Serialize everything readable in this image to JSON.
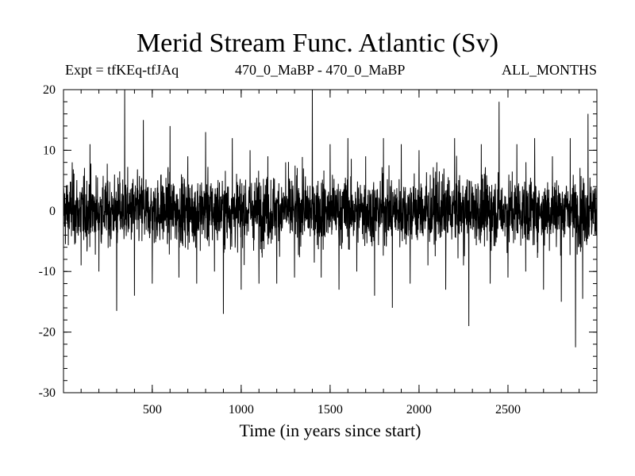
{
  "chart_data": {
    "type": "line",
    "title": "Merid Stream Func. Atlantic (Sv)",
    "subtitle_left": "Expt = tfKEq-tfJAq",
    "subtitle_center": "470_0_MaBP - 470_0_MaBP",
    "subtitle_right": "ALL_MONTHS",
    "xlabel": "Time (in years since start)",
    "ylabel": "",
    "xlim": [
      1,
      3000
    ],
    "ylim": [
      -30,
      20
    ],
    "x_ticks": [
      500,
      1000,
      1500,
      2000,
      2500
    ],
    "y_ticks": [
      20,
      10,
      0,
      -10,
      -20,
      -30
    ],
    "grid": false,
    "series": [
      {
        "color": "#000000",
        "sampled_points": [
          [
            1,
            2
          ],
          [
            50,
            8
          ],
          [
            100,
            -9
          ],
          [
            150,
            11
          ],
          [
            200,
            -10
          ],
          [
            250,
            5
          ],
          [
            300,
            -16.5
          ],
          [
            345,
            20
          ],
          [
            400,
            -14
          ],
          [
            450,
            15
          ],
          [
            500,
            -12
          ],
          [
            550,
            6
          ],
          [
            600,
            14
          ],
          [
            650,
            -11
          ],
          [
            700,
            9
          ],
          [
            750,
            -12
          ],
          [
            800,
            13
          ],
          [
            850,
            -10
          ],
          [
            900,
            -17
          ],
          [
            950,
            12
          ],
          [
            1000,
            -13
          ],
          [
            1050,
            10
          ],
          [
            1100,
            -12
          ],
          [
            1150,
            9
          ],
          [
            1200,
            -12
          ],
          [
            1250,
            8
          ],
          [
            1300,
            -11
          ],
          [
            1350,
            7
          ],
          [
            1400,
            20
          ],
          [
            1450,
            -11
          ],
          [
            1500,
            11
          ],
          [
            1550,
            -13
          ],
          [
            1600,
            12
          ],
          [
            1650,
            -10
          ],
          [
            1700,
            9
          ],
          [
            1750,
            -14
          ],
          [
            1800,
            12
          ],
          [
            1850,
            -16
          ],
          [
            1900,
            11
          ],
          [
            1950,
            -12
          ],
          [
            2000,
            10
          ],
          [
            2050,
            -9
          ],
          [
            2100,
            8
          ],
          [
            2150,
            -13
          ],
          [
            2200,
            12
          ],
          [
            2250,
            -9
          ],
          [
            2280,
            -19
          ],
          [
            2350,
            11
          ],
          [
            2400,
            -12
          ],
          [
            2450,
            18
          ],
          [
            2500,
            -11
          ],
          [
            2550,
            11
          ],
          [
            2600,
            -10
          ],
          [
            2650,
            12
          ],
          [
            2700,
            -13
          ],
          [
            2750,
            9
          ],
          [
            2800,
            -15
          ],
          [
            2850,
            12
          ],
          [
            2880,
            -22.5
          ],
          [
            2920,
            -14.5
          ],
          [
            2950,
            16
          ],
          [
            3000,
            4
          ]
        ]
      }
    ]
  }
}
